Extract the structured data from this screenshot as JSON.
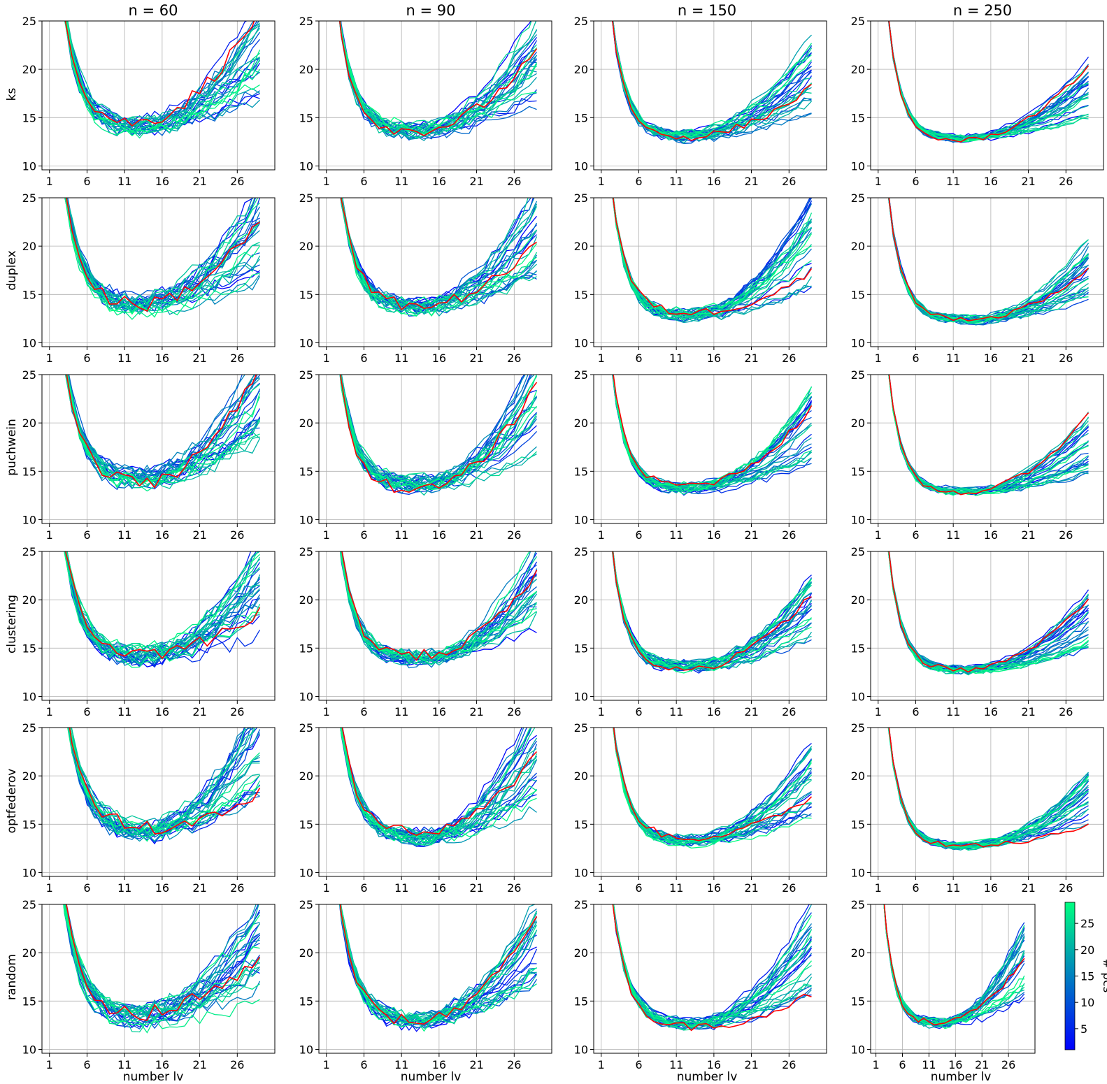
{
  "figure": {
    "column_titles": [
      "n = 60",
      "n = 90",
      "n = 150",
      "n = 250"
    ],
    "row_labels": [
      "ks",
      "duplex",
      "puchwein",
      "clustering",
      "optfederov",
      "random"
    ],
    "xlabel": "number lv",
    "colorbar": {
      "label": "# pcs",
      "ticks": [
        5,
        10,
        15,
        20,
        25
      ],
      "range": [
        1,
        29
      ],
      "color_low": "#0000ff",
      "color_high": "#00ff80",
      "colormap": "winter"
    },
    "reference_line_color": "#ff0000"
  },
  "chart_data": {
    "type": "line",
    "layout": "small-multiples grid, 6 rows (sampling method) x 4 columns (calibration size n)",
    "x_range": [
      0,
      31
    ],
    "x_ticks": [
      1,
      6,
      11,
      16,
      21,
      26
    ],
    "y_range": [
      9.6,
      25
    ],
    "y_ticks": [
      10,
      15,
      20,
      25
    ],
    "grid": true,
    "n_lv": 29,
    "series_per_panel": "one line per number of principal components (# pcs), colored by the colorbar, plus one red reference line",
    "curve_model": {
      "description": "approximate typical error curve per panel: y = min + drop*exp(-(x-1)/tau) + rise*((x-xm)/(29-xm))^2 for x>xm",
      "panels": [
        {
          "col": "n = 60",
          "row": "ks",
          "min": 14.0,
          "drop": 30,
          "tau": 2.2,
          "xm": 11,
          "rise": 6,
          "spread": 2.5
        },
        {
          "col": "n = 90",
          "row": "ks",
          "min": 13.6,
          "drop": 28,
          "tau": 2.0,
          "xm": 12,
          "rise": 6,
          "spread": 2.0
        },
        {
          "col": "n = 150",
          "row": "ks",
          "min": 13.0,
          "drop": 26,
          "tau": 1.9,
          "xm": 11,
          "rise": 5,
          "spread": 1.3
        },
        {
          "col": "n = 250",
          "row": "ks",
          "min": 12.8,
          "drop": 26,
          "tau": 1.8,
          "xm": 11,
          "rise": 4,
          "spread": 0.9
        },
        {
          "col": "n = 60",
          "row": "duplex",
          "min": 13.6,
          "drop": 28,
          "tau": 2.4,
          "xm": 11,
          "rise": 6,
          "spread": 2.6
        },
        {
          "col": "n = 90",
          "row": "duplex",
          "min": 13.6,
          "drop": 28,
          "tau": 2.2,
          "xm": 12,
          "rise": 6,
          "spread": 2.0
        },
        {
          "col": "n = 150",
          "row": "duplex",
          "min": 12.8,
          "drop": 26,
          "tau": 2.0,
          "xm": 12,
          "rise": 6,
          "spread": 1.4
        },
        {
          "col": "n = 250",
          "row": "duplex",
          "min": 12.3,
          "drop": 26,
          "tau": 1.9,
          "xm": 13,
          "rise": 4,
          "spread": 1.0
        },
        {
          "col": "n = 60",
          "row": "puchwein",
          "min": 14.0,
          "drop": 30,
          "tau": 2.3,
          "xm": 12,
          "rise": 7,
          "spread": 2.6
        },
        {
          "col": "n = 90",
          "row": "puchwein",
          "min": 13.6,
          "drop": 28,
          "tau": 2.1,
          "xm": 13,
          "rise": 7,
          "spread": 2.0
        },
        {
          "col": "n = 150",
          "row": "puchwein",
          "min": 13.2,
          "drop": 26,
          "tau": 1.9,
          "xm": 12,
          "rise": 5,
          "spread": 1.3
        },
        {
          "col": "n = 250",
          "row": "puchwein",
          "min": 12.9,
          "drop": 26,
          "tau": 1.8,
          "xm": 12,
          "rise": 4,
          "spread": 0.9
        },
        {
          "col": "n = 60",
          "row": "clustering",
          "min": 14.0,
          "drop": 28,
          "tau": 2.3,
          "xm": 12,
          "rise": 6,
          "spread": 2.5
        },
        {
          "col": "n = 90",
          "row": "clustering",
          "min": 13.8,
          "drop": 28,
          "tau": 2.1,
          "xm": 13,
          "rise": 6,
          "spread": 2.0
        },
        {
          "col": "n = 150",
          "row": "clustering",
          "min": 13.0,
          "drop": 26,
          "tau": 1.9,
          "xm": 12,
          "rise": 5,
          "spread": 1.3
        },
        {
          "col": "n = 250",
          "row": "clustering",
          "min": 12.7,
          "drop": 26,
          "tau": 1.8,
          "xm": 12,
          "rise": 4,
          "spread": 0.9
        },
        {
          "col": "n = 60",
          "row": "optfederov",
          "min": 14.0,
          "drop": 30,
          "tau": 2.6,
          "xm": 12,
          "rise": 7,
          "spread": 2.7
        },
        {
          "col": "n = 90",
          "row": "optfederov",
          "min": 13.6,
          "drop": 28,
          "tau": 2.2,
          "xm": 13,
          "rise": 7,
          "spread": 2.0
        },
        {
          "col": "n = 150",
          "row": "optfederov",
          "min": 13.2,
          "drop": 26,
          "tau": 2.0,
          "xm": 12,
          "rise": 5,
          "spread": 1.3
        },
        {
          "col": "n = 250",
          "row": "optfederov",
          "min": 12.7,
          "drop": 26,
          "tau": 1.8,
          "xm": 12,
          "rise": 4,
          "spread": 0.9
        },
        {
          "col": "n = 60",
          "row": "random",
          "min": 13.0,
          "drop": 28,
          "tau": 2.4,
          "xm": 11,
          "rise": 6,
          "spread": 2.6
        },
        {
          "col": "n = 90",
          "row": "random",
          "min": 12.8,
          "drop": 28,
          "tau": 2.2,
          "xm": 12,
          "rise": 6,
          "spread": 2.0
        },
        {
          "col": "n = 150",
          "row": "random",
          "min": 12.6,
          "drop": 26,
          "tau": 2.1,
          "xm": 12,
          "rise": 6,
          "spread": 1.4
        },
        {
          "col": "n = 250",
          "row": "random",
          "min": 12.6,
          "drop": 26,
          "tau": 2.0,
          "xm": 12,
          "rise": 5,
          "spread": 1.1
        }
      ]
    }
  }
}
